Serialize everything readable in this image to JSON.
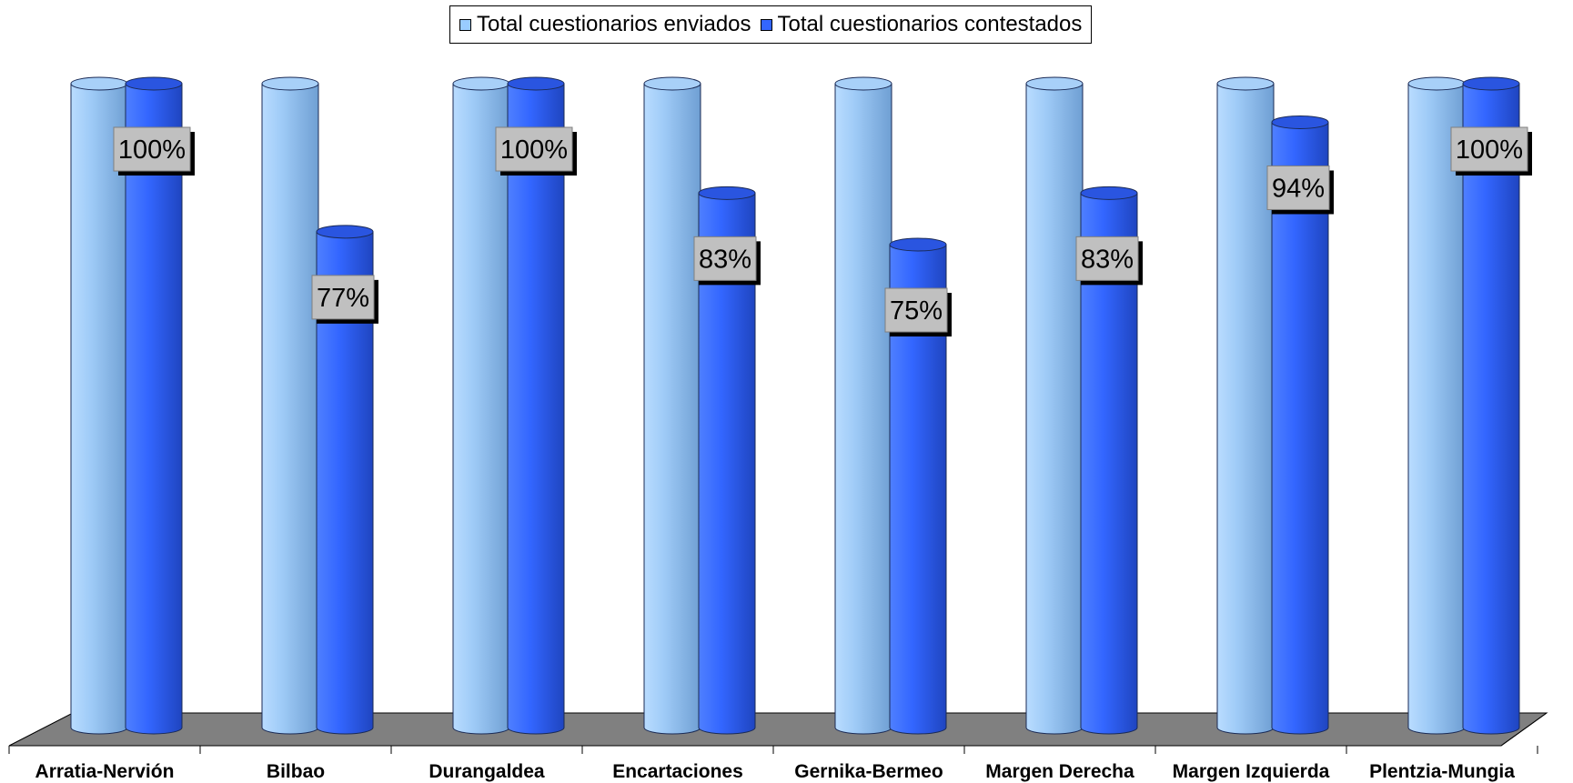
{
  "chart_data": {
    "type": "bar",
    "title": "",
    "xlabel": "",
    "ylabel": "",
    "ylim": [
      0,
      100
    ],
    "grid": false,
    "legend_position": "top",
    "categories": [
      "Arratia-Nervión",
      "Bilbao",
      "Durangaldea",
      "Encartaciones",
      "Gernika-Bermeo",
      "Margen Derecha",
      "Margen Izquierda",
      "Plentzia-Mungia"
    ],
    "series": [
      {
        "name": "Total cuestionarios enviados",
        "color": "#99ccff",
        "values": [
          100,
          100,
          100,
          100,
          100,
          100,
          100,
          100
        ]
      },
      {
        "name": "Total cuestionarios contestados",
        "color": "#3366ff",
        "values": [
          100,
          77,
          100,
          83,
          75,
          83,
          94,
          100
        ]
      }
    ],
    "data_labels": [
      "100%",
      "77%",
      "100%",
      "83%",
      "75%",
      "83%",
      "94%",
      "100%"
    ]
  }
}
